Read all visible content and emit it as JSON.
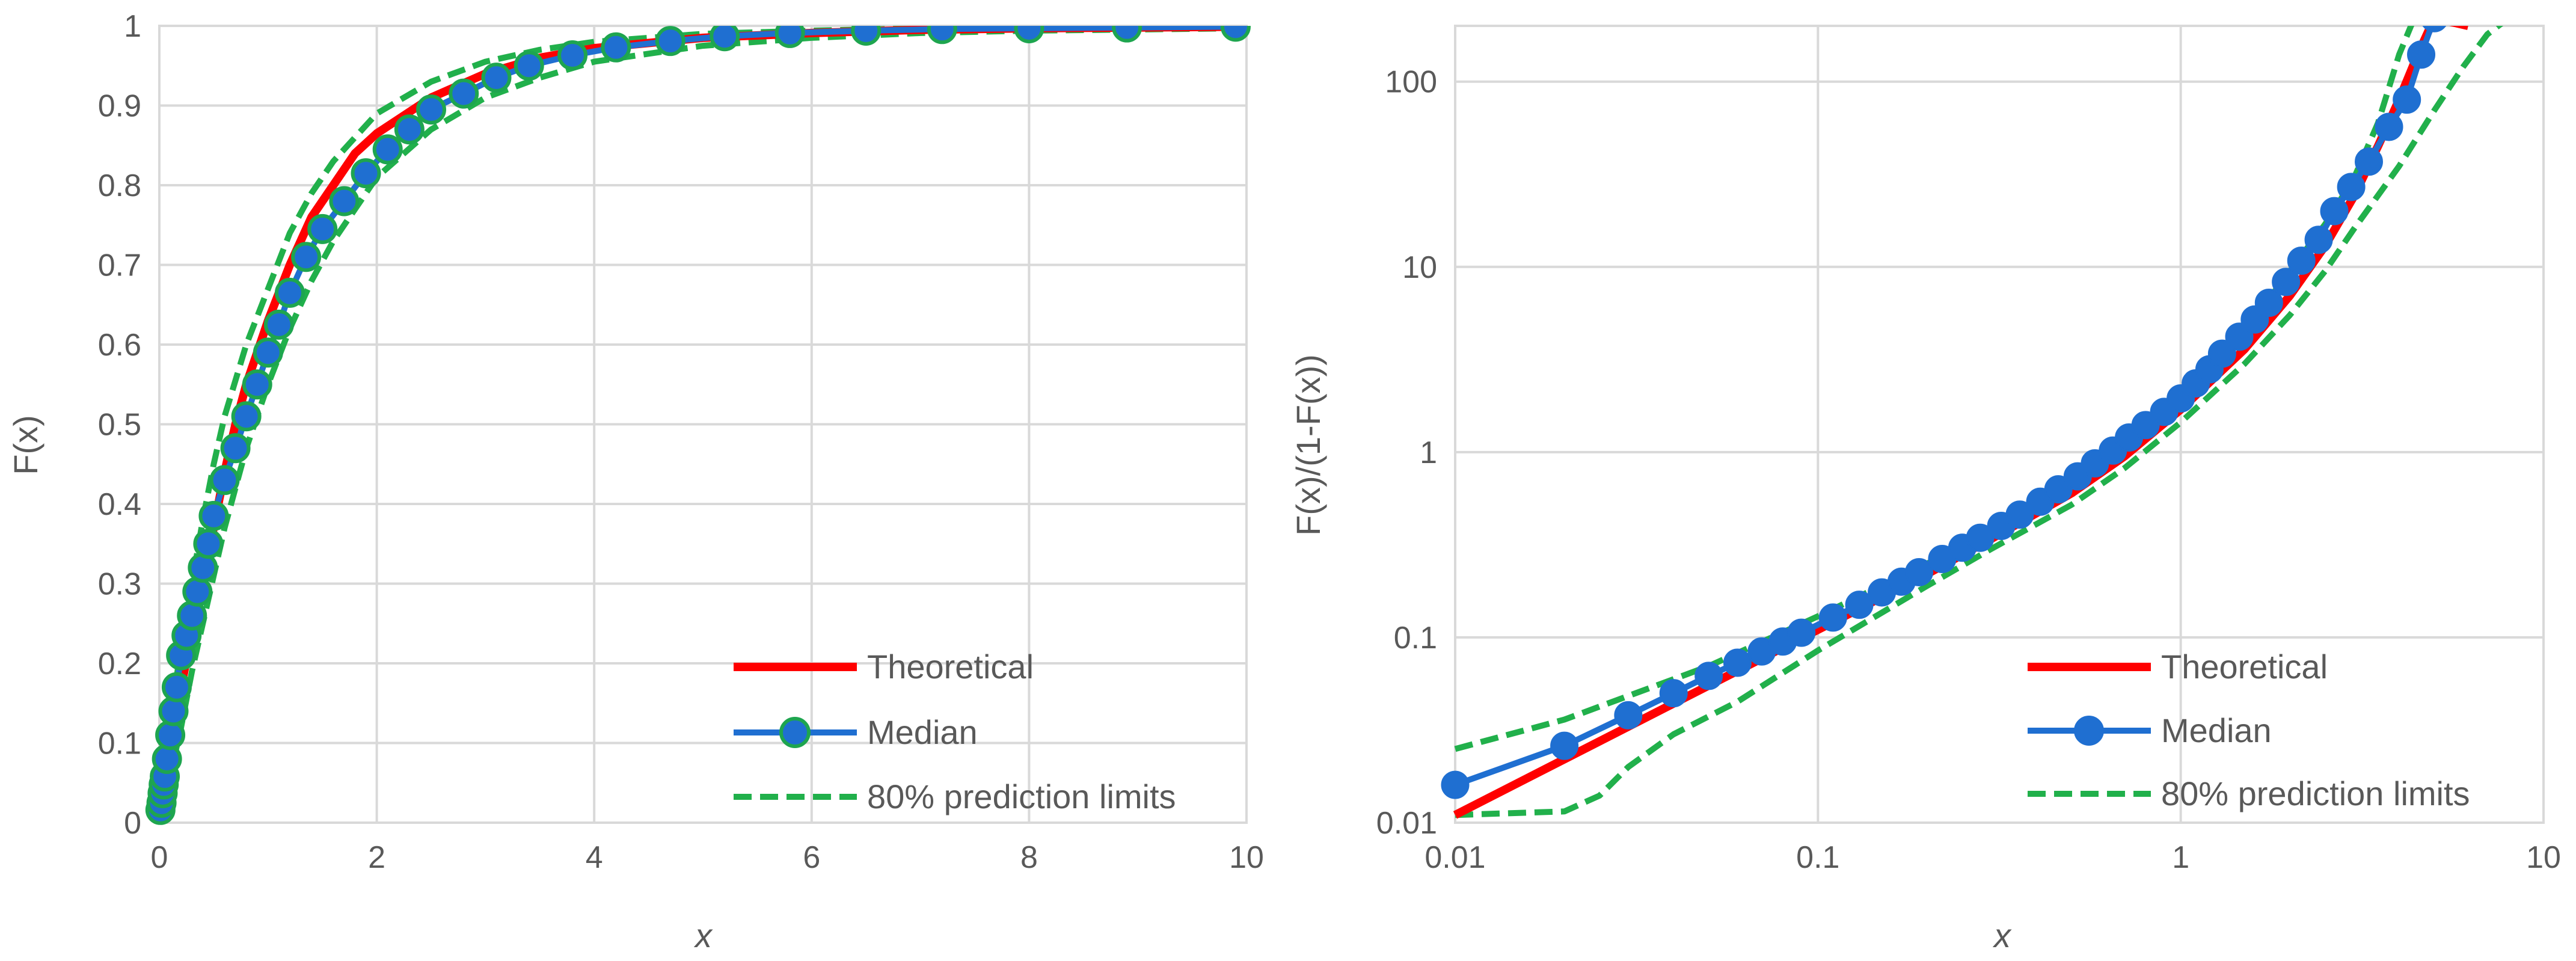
{
  "colors": {
    "theoretical": "#ff0000",
    "median": "#1f6fd1",
    "median_marker_left": "#1ea54f",
    "limits": "#21b04b",
    "grid": "#d9d9d9",
    "text": "#595959"
  },
  "chart_data": [
    {
      "id": "cdf",
      "type": "line",
      "title": "",
      "xlabel": "x",
      "ylabel": "F(x)",
      "xscale": "linear",
      "yscale": "linear",
      "xlim": [
        0,
        10
      ],
      "ylim": [
        0,
        1
      ],
      "grid": true,
      "legend_position": "bottom-right",
      "x_ticks": [
        {
          "v": 0,
          "label": "0"
        },
        {
          "v": 2,
          "label": "2"
        },
        {
          "v": 4,
          "label": "4"
        },
        {
          "v": 6,
          "label": "6"
        },
        {
          "v": 8,
          "label": "8"
        },
        {
          "v": 10,
          "label": "10"
        }
      ],
      "y_ticks": [
        {
          "v": 0,
          "label": "0"
        },
        {
          "v": 0.1,
          "label": "0.1"
        },
        {
          "v": 0.2,
          "label": "0.2"
        },
        {
          "v": 0.3,
          "label": "0.3"
        },
        {
          "v": 0.4,
          "label": "0.4"
        },
        {
          "v": 0.5,
          "label": "0.5"
        },
        {
          "v": 0.6,
          "label": "0.6"
        },
        {
          "v": 0.7,
          "label": "0.7"
        },
        {
          "v": 0.8,
          "label": "0.8"
        },
        {
          "v": 0.9,
          "label": "0.9"
        },
        {
          "v": 1,
          "label": "1"
        }
      ],
      "series": [
        {
          "name": "Theoretical",
          "style": "solid-thick",
          "points": [
            [
              0,
              0.01
            ],
            [
              0.05,
              0.06
            ],
            [
              0.1,
              0.1
            ],
            [
              0.2,
              0.17
            ],
            [
              0.3,
              0.24
            ],
            [
              0.4,
              0.31
            ],
            [
              0.5,
              0.37
            ],
            [
              0.6,
              0.44
            ],
            [
              0.7,
              0.5
            ],
            [
              0.8,
              0.55
            ],
            [
              1,
              0.63
            ],
            [
              1.2,
              0.7
            ],
            [
              1.4,
              0.76
            ],
            [
              1.6,
              0.8
            ],
            [
              1.8,
              0.84
            ],
            [
              2,
              0.865
            ],
            [
              2.5,
              0.91
            ],
            [
              3,
              0.94
            ],
            [
              3.5,
              0.96
            ],
            [
              4,
              0.972
            ],
            [
              5,
              0.985
            ],
            [
              6,
              0.991
            ],
            [
              7,
              0.995
            ],
            [
              8,
              0.997
            ],
            [
              9,
              0.998
            ],
            [
              10,
              0.999
            ]
          ]
        },
        {
          "name": "Median",
          "style": "line-markers",
          "points": [
            [
              0.01,
              0.016
            ],
            [
              0.02,
              0.025
            ],
            [
              0.03,
              0.037
            ],
            [
              0.04,
              0.048
            ],
            [
              0.05,
              0.058
            ],
            [
              0.07,
              0.08
            ],
            [
              0.1,
              0.11
            ],
            [
              0.13,
              0.14
            ],
            [
              0.16,
              0.17
            ],
            [
              0.2,
              0.21
            ],
            [
              0.25,
              0.235
            ],
            [
              0.3,
              0.26
            ],
            [
              0.35,
              0.29
            ],
            [
              0.4,
              0.32
            ],
            [
              0.45,
              0.35
            ],
            [
              0.5,
              0.385
            ],
            [
              0.6,
              0.43
            ],
            [
              0.7,
              0.47
            ],
            [
              0.8,
              0.51
            ],
            [
              0.9,
              0.55
            ],
            [
              1,
              0.59
            ],
            [
              1.1,
              0.625
            ],
            [
              1.2,
              0.665
            ],
            [
              1.35,
              0.71
            ],
            [
              1.5,
              0.745
            ],
            [
              1.7,
              0.78
            ],
            [
              1.9,
              0.815
            ],
            [
              2.1,
              0.845
            ],
            [
              2.3,
              0.87
            ],
            [
              2.5,
              0.895
            ],
            [
              2.8,
              0.915
            ],
            [
              3.1,
              0.935
            ],
            [
              3.4,
              0.95
            ],
            [
              3.8,
              0.963
            ],
            [
              4.2,
              0.973
            ],
            [
              4.7,
              0.981
            ],
            [
              5.2,
              0.987
            ],
            [
              5.8,
              0.991
            ],
            [
              6.5,
              0.994
            ],
            [
              7.2,
              0.996
            ],
            [
              8,
              0.997
            ],
            [
              8.9,
              0.998
            ],
            [
              9.9,
              0.999
            ]
          ]
        },
        {
          "name": "80% prediction limits",
          "style": "dashed",
          "legend": true,
          "points": [
            [
              0,
              0.02
            ],
            [
              0.05,
              0.07
            ],
            [
              0.1,
              0.13
            ],
            [
              0.2,
              0.22
            ],
            [
              0.3,
              0.3
            ],
            [
              0.4,
              0.38
            ],
            [
              0.5,
              0.45
            ],
            [
              0.6,
              0.51
            ],
            [
              0.8,
              0.6
            ],
            [
              1,
              0.67
            ],
            [
              1.2,
              0.74
            ],
            [
              1.4,
              0.79
            ],
            [
              1.6,
              0.83
            ],
            [
              1.8,
              0.86
            ],
            [
              2,
              0.89
            ],
            [
              2.5,
              0.93
            ],
            [
              3,
              0.955
            ],
            [
              3.5,
              0.97
            ],
            [
              4,
              0.98
            ],
            [
              5,
              0.99
            ],
            [
              6,
              0.994
            ],
            [
              7,
              0.997
            ],
            [
              8,
              0.998
            ],
            [
              10,
              0.999
            ]
          ]
        },
        {
          "name": "80% prediction limits",
          "style": "dashed",
          "legend": false,
          "points": [
            [
              0,
              0.01
            ],
            [
              0.05,
              0.03
            ],
            [
              0.1,
              0.06
            ],
            [
              0.2,
              0.12
            ],
            [
              0.3,
              0.19
            ],
            [
              0.4,
              0.25
            ],
            [
              0.5,
              0.31
            ],
            [
              0.6,
              0.37
            ],
            [
              0.8,
              0.47
            ],
            [
              1,
              0.55
            ],
            [
              1.2,
              0.62
            ],
            [
              1.4,
              0.68
            ],
            [
              1.6,
              0.73
            ],
            [
              1.8,
              0.77
            ],
            [
              2,
              0.81
            ],
            [
              2.5,
              0.87
            ],
            [
              3,
              0.91
            ],
            [
              3.5,
              0.935
            ],
            [
              4,
              0.955
            ],
            [
              5,
              0.975
            ],
            [
              6,
              0.985
            ],
            [
              7,
              0.991
            ],
            [
              8,
              0.994
            ],
            [
              10,
              0.997
            ]
          ]
        }
      ]
    },
    {
      "id": "odds",
      "type": "line",
      "title": "",
      "xlabel": "x",
      "ylabel": "F(x)/(1-F(x))",
      "xscale": "log",
      "yscale": "log",
      "xlim": [
        0.01,
        10
      ],
      "ylim": [
        0.01,
        200
      ],
      "grid": true,
      "legend_position": "bottom-right",
      "x_ticks": [
        {
          "v": 0.01,
          "label": "0.01"
        },
        {
          "v": 0.1,
          "label": "0.1"
        },
        {
          "v": 1,
          "label": "1"
        },
        {
          "v": 10,
          "label": "10"
        }
      ],
      "y_ticks": [
        {
          "v": 0.01,
          "label": "0.01"
        },
        {
          "v": 0.1,
          "label": "0.1"
        },
        {
          "v": 1,
          "label": "1"
        },
        {
          "v": 10,
          "label": "10"
        },
        {
          "v": 100,
          "label": "100"
        }
      ],
      "series": [
        {
          "name": "Theoretical",
          "style": "solid-thick",
          "points": [
            [
              0.01,
              0.011
            ],
            [
              0.02,
              0.022
            ],
            [
              0.05,
              0.055
            ],
            [
              0.1,
              0.11
            ],
            [
              0.2,
              0.22
            ],
            [
              0.3,
              0.34
            ],
            [
              0.5,
              0.6
            ],
            [
              0.7,
              0.95
            ],
            [
              1,
              1.7
            ],
            [
              1.5,
              3.6
            ],
            [
              2,
              7
            ],
            [
              2.5,
              13
            ],
            [
              3,
              24
            ],
            [
              3.5,
              45
            ],
            [
              4,
              80
            ],
            [
              4.5,
              140
            ],
            [
              5,
              220
            ],
            [
              6.2,
              200
            ]
          ]
        },
        {
          "name": "Median",
          "style": "line-markers",
          "points": [
            [
              0.01,
              0.016
            ],
            [
              0.02,
              0.026
            ],
            [
              0.03,
              0.038
            ],
            [
              0.04,
              0.05
            ],
            [
              0.05,
              0.062
            ],
            [
              0.06,
              0.073
            ],
            [
              0.07,
              0.084
            ],
            [
              0.08,
              0.095
            ],
            [
              0.09,
              0.106
            ],
            [
              0.11,
              0.128
            ],
            [
              0.13,
              0.15
            ],
            [
              0.15,
              0.175
            ],
            [
              0.17,
              0.2
            ],
            [
              0.19,
              0.225
            ],
            [
              0.22,
              0.265
            ],
            [
              0.25,
              0.305
            ],
            [
              0.28,
              0.345
            ],
            [
              0.32,
              0.4
            ],
            [
              0.36,
              0.46
            ],
            [
              0.41,
              0.54
            ],
            [
              0.46,
              0.63
            ],
            [
              0.52,
              0.74
            ],
            [
              0.58,
              0.87
            ],
            [
              0.65,
              1.02
            ],
            [
              0.72,
              1.2
            ],
            [
              0.8,
              1.4
            ],
            [
              0.9,
              1.65
            ],
            [
              1,
              1.95
            ],
            [
              1.1,
              2.35
            ],
            [
              1.2,
              2.8
            ],
            [
              1.3,
              3.4
            ],
            [
              1.45,
              4.2
            ],
            [
              1.6,
              5.2
            ],
            [
              1.75,
              6.4
            ],
            [
              1.95,
              8.3
            ],
            [
              2.15,
              10.8
            ],
            [
              2.4,
              14
            ],
            [
              2.65,
              20
            ],
            [
              2.95,
              27
            ],
            [
              3.3,
              37
            ],
            [
              3.75,
              57
            ],
            [
              4.2,
              80
            ],
            [
              4.6,
              140
            ],
            [
              5,
              220
            ]
          ]
        },
        {
          "name": "80% prediction limits",
          "style": "dashed",
          "legend": true,
          "points": [
            [
              0.01,
              0.025
            ],
            [
              0.02,
              0.036
            ],
            [
              0.05,
              0.07
            ],
            [
              0.1,
              0.13
            ],
            [
              0.2,
              0.25
            ],
            [
              0.3,
              0.39
            ],
            [
              0.5,
              0.7
            ],
            [
              0.7,
              1.1
            ],
            [
              1,
              2.1
            ],
            [
              1.5,
              4.5
            ],
            [
              2,
              9.5
            ],
            [
              2.5,
              17
            ],
            [
              3,
              30
            ],
            [
              3.5,
              60
            ],
            [
              4,
              140
            ],
            [
              4.4,
              220
            ]
          ]
        },
        {
          "name": "80% prediction limits",
          "style": "dashed",
          "legend": false,
          "points": [
            [
              0.01,
              0.011
            ],
            [
              0.02,
              0.0115
            ],
            [
              0.025,
              0.014
            ],
            [
              0.03,
              0.02
            ],
            [
              0.04,
              0.03
            ],
            [
              0.06,
              0.045
            ],
            [
              0.1,
              0.085
            ],
            [
              0.2,
              0.19
            ],
            [
              0.3,
              0.3
            ],
            [
              0.5,
              0.52
            ],
            [
              0.7,
              0.82
            ],
            [
              1,
              1.45
            ],
            [
              1.5,
              3
            ],
            [
              2,
              5.5
            ],
            [
              2.5,
              9.5
            ],
            [
              3,
              16
            ],
            [
              4,
              35
            ],
            [
              5,
              70
            ],
            [
              6,
              120
            ],
            [
              7,
              180
            ],
            [
              8,
              220
            ]
          ]
        }
      ]
    }
  ]
}
